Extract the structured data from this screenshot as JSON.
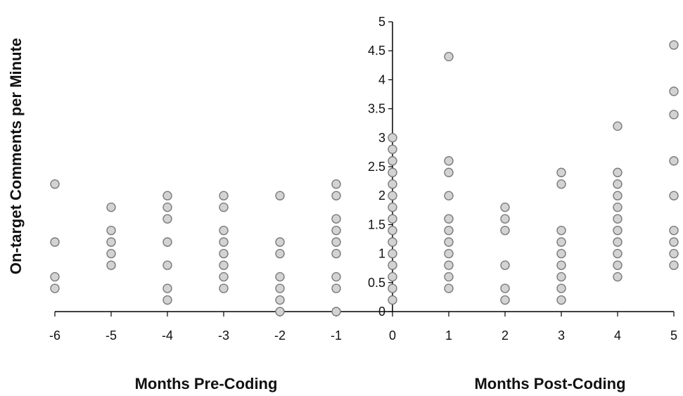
{
  "chart_data": {
    "type": "scatter",
    "ylabel": "On-target Comments per Minute",
    "xlabel_left": "Months Pre-Coding",
    "xlabel_right": "Months Post-Coding",
    "xlim": [
      -6,
      5
    ],
    "ylim": [
      0,
      5
    ],
    "x_ticks": [
      -6,
      -5,
      -4,
      -3,
      -2,
      -1,
      0,
      1,
      2,
      3,
      4,
      5
    ],
    "y_ticks": [
      0,
      0.5,
      1,
      1.5,
      2,
      2.5,
      3,
      3.5,
      4,
      4.5,
      5
    ],
    "grid": false,
    "marker_color": "#d3d3d3",
    "marker_edge_color": "#7a7a7a",
    "points": [
      {
        "x": -6,
        "values": [
          2.2,
          1.2,
          0.6,
          0.4
        ]
      },
      {
        "x": -5,
        "values": [
          1.8,
          1.4,
          1.2,
          1.0,
          0.8
        ]
      },
      {
        "x": -4,
        "values": [
          2.0,
          1.8,
          1.6,
          1.2,
          0.8,
          0.4,
          0.2
        ]
      },
      {
        "x": -3,
        "values": [
          2.0,
          1.8,
          1.4,
          1.2,
          1.0,
          0.8,
          0.6,
          0.4
        ]
      },
      {
        "x": -2,
        "values": [
          2.0,
          1.2,
          1.0,
          0.6,
          0.4,
          0.2,
          0.0
        ]
      },
      {
        "x": -1,
        "values": [
          2.2,
          2.0,
          1.6,
          1.4,
          1.2,
          1.0,
          0.6,
          0.4,
          0.0
        ]
      },
      {
        "x": 0,
        "values": [
          3.0,
          2.8,
          2.6,
          2.4,
          2.2,
          2.0,
          1.8,
          1.6,
          1.4,
          1.2,
          1.0,
          0.8,
          0.6,
          0.4,
          0.2
        ]
      },
      {
        "x": 1,
        "values": [
          4.4,
          2.6,
          2.4,
          2.0,
          1.6,
          1.4,
          1.2,
          1.0,
          0.8,
          0.6,
          0.4
        ]
      },
      {
        "x": 2,
        "values": [
          1.8,
          1.6,
          1.4,
          0.8,
          0.4,
          0.2
        ]
      },
      {
        "x": 3,
        "values": [
          2.4,
          2.2,
          1.4,
          1.2,
          1.0,
          0.8,
          0.6,
          0.4,
          0.2
        ]
      },
      {
        "x": 4,
        "values": [
          3.2,
          2.4,
          2.2,
          2.0,
          1.8,
          1.6,
          1.4,
          1.2,
          1.0,
          0.8,
          0.6
        ]
      },
      {
        "x": 5,
        "values": [
          4.6,
          3.8,
          3.4,
          2.6,
          2.0,
          1.4,
          1.2,
          1.0,
          0.8
        ]
      }
    ]
  }
}
